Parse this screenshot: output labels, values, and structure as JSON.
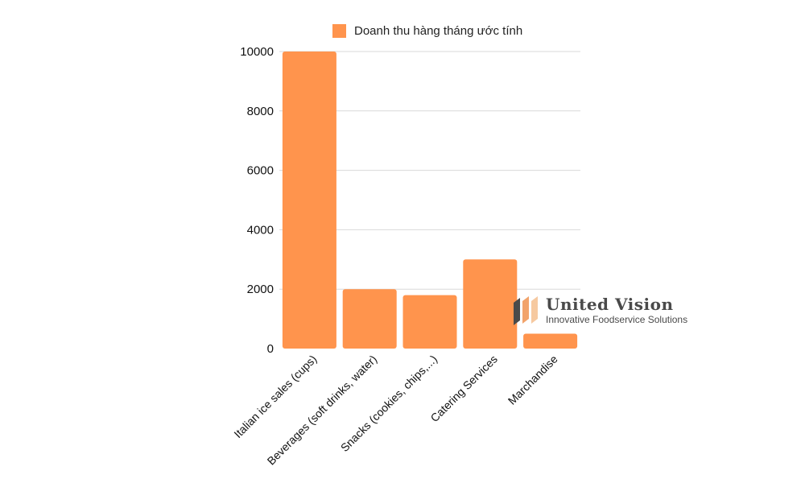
{
  "chart_data": {
    "type": "bar",
    "categories": [
      "Italian ice sales (cups)",
      "Beverages (soft drinks, water)",
      "Snacks (cookies, chips,...)",
      "Catering Services",
      "Marchandise"
    ],
    "series": [
      {
        "name": "Doanh thu hàng tháng ước tính",
        "values": [
          10000,
          2000,
          1800,
          3000,
          500
        ]
      }
    ],
    "title": "",
    "xlabel": "",
    "ylabel": "",
    "ylim": [
      0,
      10000
    ],
    "yticks": [
      0,
      2000,
      4000,
      6000,
      8000,
      10000
    ],
    "grid": true,
    "legend_position": "top",
    "bar_color": "#FF944D"
  },
  "watermark": {
    "title": "United Vision",
    "subtitle": "Innovative Foodservice Solutions",
    "colors": [
      "#4a4a4a",
      "#F2A36B",
      "#F6C9A0"
    ]
  }
}
